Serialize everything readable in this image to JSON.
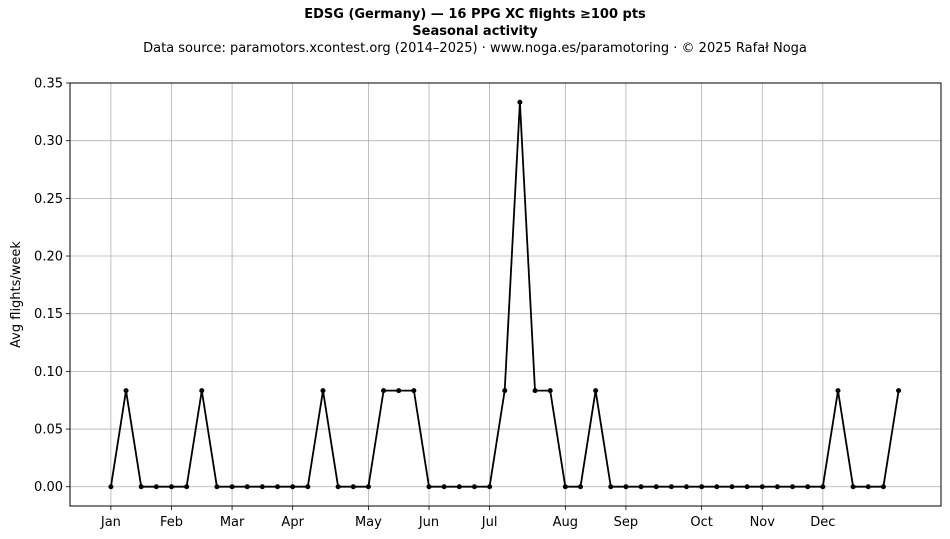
{
  "header": {
    "title": "EDSG (Germany)  —  16 PPG XC flights ≥100 pts",
    "subtitle": "Seasonal activity",
    "source": "Data source: paramotors.xcontest.org (2014–2025)  ·  www.noga.es/paramotoring  ·  © 2025 Rafał Noga"
  },
  "chart_data": {
    "type": "line",
    "title": "EDSG (Germany)  —  16 PPG XC flights ≥100 pts",
    "subtitle": "Seasonal activity",
    "xlabel": "",
    "ylabel": "Avg flights/week",
    "x_unit": "week of year",
    "x_ticks": [
      {
        "label": "Jan",
        "week": 1
      },
      {
        "label": "Feb",
        "week": 5
      },
      {
        "label": "Mar",
        "week": 9
      },
      {
        "label": "Apr",
        "week": 13
      },
      {
        "label": "May",
        "week": 18
      },
      {
        "label": "Jun",
        "week": 22
      },
      {
        "label": "Jul",
        "week": 26
      },
      {
        "label": "Aug",
        "week": 31
      },
      {
        "label": "Sep",
        "week": 35
      },
      {
        "label": "Oct",
        "week": 40
      },
      {
        "label": "Nov",
        "week": 44
      },
      {
        "label": "Dec",
        "week": 48
      }
    ],
    "y_ticks": [
      "0.00",
      "0.05",
      "0.10",
      "0.15",
      "0.20",
      "0.25",
      "0.30",
      "0.35"
    ],
    "ylim": [
      -0.0167,
      0.35
    ],
    "xlim": [
      -1.7,
      55.8
    ],
    "grid": true,
    "series": [
      {
        "color": "#000000",
        "x": [
          1,
          2,
          3,
          4,
          5,
          6,
          7,
          8,
          9,
          10,
          11,
          12,
          13,
          14,
          15,
          16,
          17,
          18,
          19,
          20,
          21,
          22,
          23,
          24,
          25,
          26,
          27,
          28,
          29,
          30,
          31,
          32,
          33,
          34,
          35,
          36,
          37,
          38,
          39,
          40,
          41,
          42,
          43,
          44,
          45,
          46,
          47,
          48,
          49,
          50,
          51,
          52,
          53
        ],
        "y": [
          0,
          0.0833,
          0,
          0,
          0,
          0,
          0.0833,
          0,
          0,
          0,
          0,
          0,
          0,
          0,
          0.0833,
          0,
          0,
          0,
          0.0833,
          0.0833,
          0.0833,
          0,
          0,
          0,
          0,
          0,
          0.0833,
          0.3333,
          0.0833,
          0.0833,
          0,
          0,
          0.0833,
          0,
          0,
          0,
          0,
          0,
          0,
          0,
          0,
          0,
          0,
          0,
          0,
          0,
          0,
          0,
          0.0833,
          0,
          0,
          0,
          0.0833
        ]
      }
    ]
  }
}
